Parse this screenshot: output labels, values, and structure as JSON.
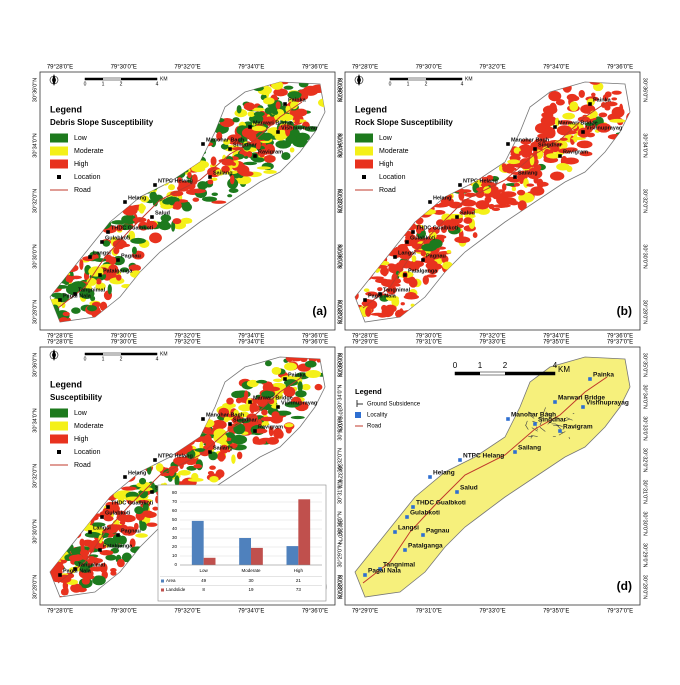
{
  "panels": [
    {
      "label": "(a)",
      "legend_title": "Legend",
      "subtitle": "Debris Slope Susceptibility",
      "legend": [
        "Low",
        "Moderate",
        "High",
        "Location",
        "Road"
      ]
    },
    {
      "label": "(b)",
      "legend_title": "Legend",
      "subtitle": "Rock Slope Susceptibility",
      "legend": [
        "Low",
        "Moderate",
        "High",
        "Location",
        "Road"
      ]
    },
    {
      "label": "(c)",
      "legend_title": "Legend",
      "subtitle": "Susceptibility",
      "legend": [
        "Low",
        "Moderate",
        "High",
        "Location",
        "Road"
      ]
    },
    {
      "label": "(d)",
      "legend_title": "Legend",
      "legend": [
        "Ground Subsidence",
        "Locality",
        "Road"
      ]
    }
  ],
  "places": [
    "Painka",
    "Marwari Bridge",
    "Vishnuprayag",
    "Manohar Bagh",
    "Singdhar",
    "Ravigram",
    "Sailang",
    "NTPC Helang",
    "Helang",
    "Salud",
    "THDC Gualbkoti",
    "Gulabkoti",
    "Langsi",
    "Pagnau",
    "Patalganga",
    "Tangnimal",
    "Pagal Nala"
  ],
  "scale": [
    "0",
    "1",
    "2",
    "4",
    "KM"
  ],
  "map_grid": {
    "lon": [
      "79°28'0\"E",
      "79°30'0\"E",
      "79°32'0\"E",
      "79°34'0\"E",
      "79°36'0\"E"
    ],
    "lat": [
      "30°36'0\"N",
      "30°34'0\"N",
      "30°32'0\"N",
      "30°30'0\"N",
      "30°28'0\"N"
    ]
  },
  "locality_grid": {
    "lon": [
      "79°29'0\"E",
      "79°31'0\"E",
      "79°33'0\"E",
      "79°35'0\"E",
      "79°37'0\"E"
    ],
    "lat": [
      "30°35'0\"N",
      "30°34'0\"N",
      "30°33'0\"N",
      "30°32'0\"N",
      "30°31'0\"N",
      "30°30'0\"N",
      "30°29'0\"N",
      "30°28'0\"N"
    ]
  },
  "chart_data": {
    "type": "bar",
    "categories": [
      "Low",
      "Moderate",
      "High"
    ],
    "series": [
      {
        "name": "Area",
        "color": "#4f81bd",
        "values": [
          49,
          30,
          21
        ]
      },
      {
        "name": "Landslide",
        "color": "#c0504d",
        "values": [
          8,
          19,
          73
        ]
      }
    ],
    "ylim": [
      0,
      80
    ],
    "yticks": [
      0,
      10,
      20,
      30,
      40,
      50,
      60,
      70,
      80
    ],
    "grid": true
  }
}
